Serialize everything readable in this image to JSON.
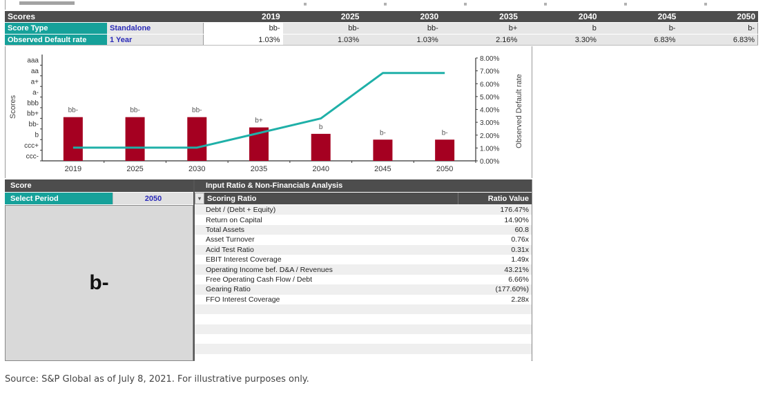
{
  "top_table": {
    "title": "Scores",
    "years": [
      "2019",
      "2025",
      "2030",
      "2035",
      "2040",
      "2045",
      "2050"
    ],
    "rows": [
      {
        "label": "Score Type",
        "value": "Standalone",
        "cells": [
          "bb-",
          "bb-",
          "bb-",
          "b+",
          "b",
          "b-",
          "b-"
        ]
      },
      {
        "label": "Observed Default rate",
        "value": "1 Year",
        "cells": [
          "1.03%",
          "1.03%",
          "1.03%",
          "2.16%",
          "3.30%",
          "6.83%",
          "6.83%"
        ]
      }
    ]
  },
  "chart_data": {
    "type": "bar+line",
    "categories": [
      "2019",
      "2025",
      "2030",
      "2035",
      "2040",
      "2045",
      "2050"
    ],
    "series": [
      {
        "name": "Scores",
        "kind": "bar",
        "axis": "left",
        "values": [
          "bb-",
          "bb-",
          "bb-",
          "b+",
          "b",
          "b-",
          "b-"
        ],
        "labels": [
          "bb-",
          "bb-",
          "bb-",
          "b+",
          "b",
          "b-",
          "b-"
        ],
        "color": "#a50021"
      },
      {
        "name": "Observed Default rate",
        "kind": "line",
        "axis": "right",
        "values": [
          1.03,
          1.03,
          1.03,
          2.16,
          3.3,
          6.83,
          6.83
        ],
        "color": "#1fb0a8"
      }
    ],
    "left_axis": {
      "label": "Scores",
      "ticks": [
        "aaa",
        "aa",
        "a+",
        "a-",
        "bbb",
        "bb+",
        "bb-",
        "b",
        "ccc+",
        "ccc-"
      ]
    },
    "right_axis": {
      "label": "Observed Default rate",
      "ticks": [
        "8.00%",
        "7.00%",
        "6.00%",
        "5.00%",
        "4.00%",
        "3.00%",
        "2.00%",
        "1.00%",
        "0.00%"
      ],
      "range": [
        0,
        8
      ]
    },
    "bar_levels": {
      "bb-": 3.4,
      "b+": 2.6,
      "b": 2.1,
      "b-": 1.65
    }
  },
  "score_panel": {
    "title": "Score",
    "select_label": "Select Period",
    "select_value": "2050",
    "score": "b-"
  },
  "ratio_panel": {
    "title": "Input Ratio & Non-Financials Analysis",
    "col_name": "Scoring Ratio",
    "col_value": "Ratio Value",
    "dropdown_icon": "▾",
    "rows": [
      {
        "name": "Debt / (Debt + Equity)",
        "value": "176.47%"
      },
      {
        "name": "Return on Capital",
        "value": "14.90%"
      },
      {
        "name": "Total Assets",
        "value": "60.8"
      },
      {
        "name": "Asset Turnover",
        "value": "0.76x"
      },
      {
        "name": "Acid Test Ratio",
        "value": "0.31x"
      },
      {
        "name": "EBIT Interest Coverage",
        "value": "1.49x"
      },
      {
        "name": "Operating Income bef. D&A / Revenues",
        "value": "43.21%"
      },
      {
        "name": "Free Operating Cash Flow / Debt",
        "value": "6.66%"
      },
      {
        "name": "Gearing Ratio",
        "value": "(177.60%)"
      },
      {
        "name": "FFO Interest Coverage",
        "value": "2.28x"
      },
      {
        "name": "",
        "value": ""
      },
      {
        "name": "",
        "value": ""
      },
      {
        "name": "",
        "value": ""
      },
      {
        "name": "",
        "value": ""
      },
      {
        "name": "",
        "value": ""
      },
      {
        "name": "",
        "value": ""
      }
    ]
  },
  "footer": "Source: S&P Global as of July 8, 2021. For illustrative purposes only."
}
